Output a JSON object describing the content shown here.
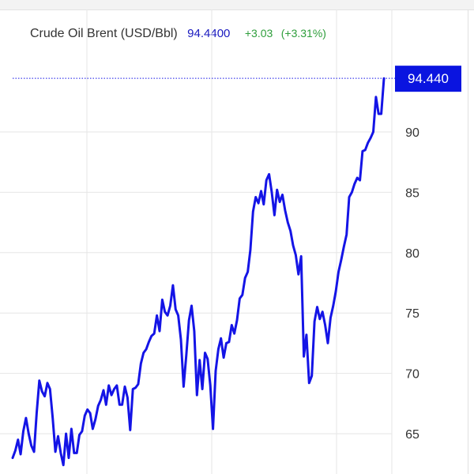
{
  "header": {
    "title": "Crude Oil Brent (USD/Bbl)",
    "price": "94.4400",
    "change": "+3.03",
    "change_pct": "(+3.31%)"
  },
  "colors": {
    "line": "#1414e6",
    "price": "#1a1abf",
    "change": "#2e9e3b",
    "grid": "#e6e6e6",
    "axis_text": "#333333",
    "badge_bg": "#0a14e0",
    "badge_text": "#ffffff"
  },
  "chart_data": {
    "type": "line",
    "title": "Crude Oil Brent (USD/Bbl)",
    "xlabel": "",
    "ylabel": "",
    "ylim": [
      62.5,
      96.2
    ],
    "yticks": [
      65,
      70,
      75,
      80,
      85,
      90
    ],
    "ytick_labels": [
      "65",
      "70",
      "75",
      "80",
      "85",
      "90"
    ],
    "last_value_label": "94.440",
    "grid": true,
    "series": [
      {
        "values": [
          63.0,
          63.6,
          64.5,
          63.3,
          65.2,
          66.3,
          65.0,
          64.0,
          63.5,
          66.7,
          69.4,
          68.5,
          68.1,
          69.2,
          68.7,
          66.3,
          63.5,
          64.8,
          63.4,
          62.4,
          65.0,
          63.0,
          65.4,
          63.4,
          63.4,
          64.9,
          65.2,
          66.5,
          67.0,
          66.7,
          65.4,
          66.2,
          67.3,
          67.8,
          68.6,
          67.4,
          69.0,
          68.2,
          68.7,
          69.0,
          67.4,
          67.4,
          68.9,
          68.0,
          65.3,
          68.7,
          68.8,
          69.1,
          70.8,
          71.7,
          72.0,
          72.6,
          73.1,
          73.3,
          74.8,
          73.5,
          76.1,
          75.1,
          74.8,
          75.6,
          77.3,
          75.3,
          74.8,
          72.8,
          68.9,
          71.5,
          74.4,
          75.6,
          73.5,
          68.2,
          71.1,
          68.7,
          71.7,
          71.2,
          69.0,
          65.4,
          70.2,
          72.0,
          72.9,
          71.3,
          72.5,
          72.6,
          74.0,
          73.3,
          74.4,
          76.2,
          76.5,
          77.9,
          78.4,
          80.2,
          83.4,
          84.6,
          84.1,
          85.1,
          84.0,
          86.0,
          86.5,
          85.0,
          83.1,
          85.2,
          84.2,
          84.8,
          83.5,
          82.5,
          81.8,
          80.6,
          79.8,
          78.2,
          79.7,
          71.4,
          73.2,
          69.2,
          69.8,
          74.3,
          75.5,
          74.5,
          75.1,
          74.0,
          72.5,
          74.6,
          75.6,
          76.8,
          78.4,
          79.4,
          80.5,
          81.5,
          84.6,
          85.0,
          85.7,
          86.2,
          86.0,
          88.4,
          88.5,
          89.1,
          89.5,
          90.0,
          92.9,
          91.5,
          91.5,
          94.44
        ]
      }
    ]
  }
}
